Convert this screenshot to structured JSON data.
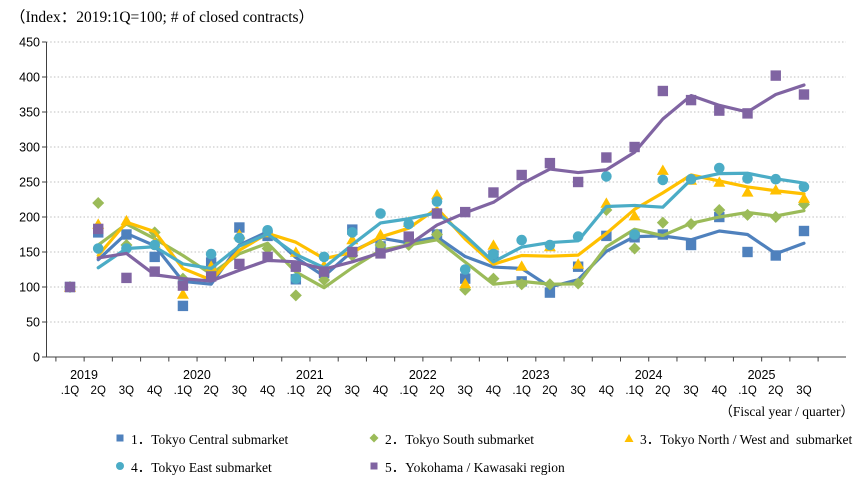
{
  "title": "（Index：2019:1Q=100; # of closed contracts）",
  "x_axis_caption": "（Fiscal year / quarter）",
  "chart_data": {
    "type": "line",
    "description": "Quarterly index (2019:1Q=100) of the number of closed office leasing contracts. Markers show quarterly values; solid lines show the 2-quarter moving-average trend.",
    "title": "（Index：2019:1Q=100; # of closed contracts）",
    "xlabel": "（Fiscal year / quarter）",
    "ylabel": "",
    "ylim": [
      0,
      450
    ],
    "y_axis": {
      "min": 0,
      "max": 450,
      "step": 50
    },
    "grid": "horizontal-dotted",
    "legend_position": "bottom",
    "trend_line": "2-quarter moving average (solid line per series)",
    "x_groups": [
      {
        "year": "2019",
        "quarters": [
          ".1Q",
          "2Q",
          "3Q",
          "4Q"
        ]
      },
      {
        "year": "2020",
        "quarters": [
          ".1Q",
          "2Q",
          "3Q",
          "4Q"
        ]
      },
      {
        "year": "2021",
        "quarters": [
          ".1Q",
          "2Q",
          "3Q",
          "4Q"
        ]
      },
      {
        "year": "2022",
        "quarters": [
          ".1Q",
          "2Q",
          "3Q",
          "4Q"
        ]
      },
      {
        "year": "2023",
        "quarters": [
          ".1Q",
          "2Q",
          "3Q",
          "4Q"
        ]
      },
      {
        "year": "2024",
        "quarters": [
          ".1Q",
          "2Q",
          "3Q",
          "4Q"
        ]
      },
      {
        "year": "2025",
        "quarters": [
          ".1Q",
          "2Q",
          "3Q"
        ]
      }
    ],
    "categories": [
      "2019.1Q",
      "2019.2Q",
      "2019.3Q",
      "2019.4Q",
      "2020.1Q",
      "2020.2Q",
      "2020.3Q",
      "2020.4Q",
      "2021.1Q",
      "2021.2Q",
      "2021.3Q",
      "2021.4Q",
      "2022.1Q",
      "2022.2Q",
      "2022.3Q",
      "2022.4Q",
      "2023.1Q",
      "2023.2Q",
      "2023.3Q",
      "2023.4Q",
      "2024.1Q",
      "2024.2Q",
      "2024.3Q",
      "2024.4Q",
      "2025.1Q",
      "2025.2Q",
      "2025.3Q"
    ],
    "series": [
      {
        "name": "1．Tokyo Central submarket",
        "marker": "square",
        "color": "#4F81BD",
        "values": [
          100,
          178,
          175,
          143,
          73,
          135,
          185,
          173,
          111,
          120,
          182,
          158,
          168,
          175,
          112,
          145,
          108,
          92,
          129,
          173,
          171,
          175,
          160,
          200,
          150,
          145,
          180
        ]
      },
      {
        "name": "2．Tokyo South submarket",
        "marker": "diamond",
        "color": "#9BBB59",
        "values": [
          100,
          220,
          160,
          178,
          112,
          125,
          170,
          155,
          88,
          110,
          145,
          160,
          160,
          175,
          96,
          112,
          104,
          104,
          105,
          210,
          155,
          192,
          190,
          210,
          203,
          200,
          218
        ]
      },
      {
        "name": "3．Tokyo North / West and  submarket",
        "marker": "triangle",
        "color": "#FFC000",
        "values": [
          100,
          190,
          195,
          163,
          90,
          130,
          175,
          178,
          150,
          131,
          168,
          175,
          193,
          232,
          105,
          160,
          130,
          158,
          133,
          220,
          202,
          267,
          253,
          250,
          236,
          239,
          227
        ]
      },
      {
        "name": "4．Tokyo East submarket",
        "marker": "circle",
        "color": "#4BACC6",
        "values": [
          100,
          155,
          155,
          160,
          106,
          147,
          170,
          181,
          112,
          143,
          178,
          205,
          190,
          222,
          125,
          147,
          167,
          160,
          172,
          258,
          175,
          253,
          254,
          270,
          255,
          254,
          243
        ]
      },
      {
        "name": "5．Yokohama / Kawasaki region",
        "marker": "square",
        "color": "#8064A2",
        "values": [
          100,
          183,
          113,
          122,
          102,
          115,
          133,
          143,
          129,
          122,
          150,
          148,
          172,
          205,
          207,
          235,
          260,
          277,
          250,
          285,
          300,
          380,
          367,
          352,
          348,
          402,
          375
        ]
      }
    ]
  },
  "style": {
    "gridline_color": "#BFBFBF",
    "axis_color": "#404040",
    "label_color": "#000000"
  }
}
